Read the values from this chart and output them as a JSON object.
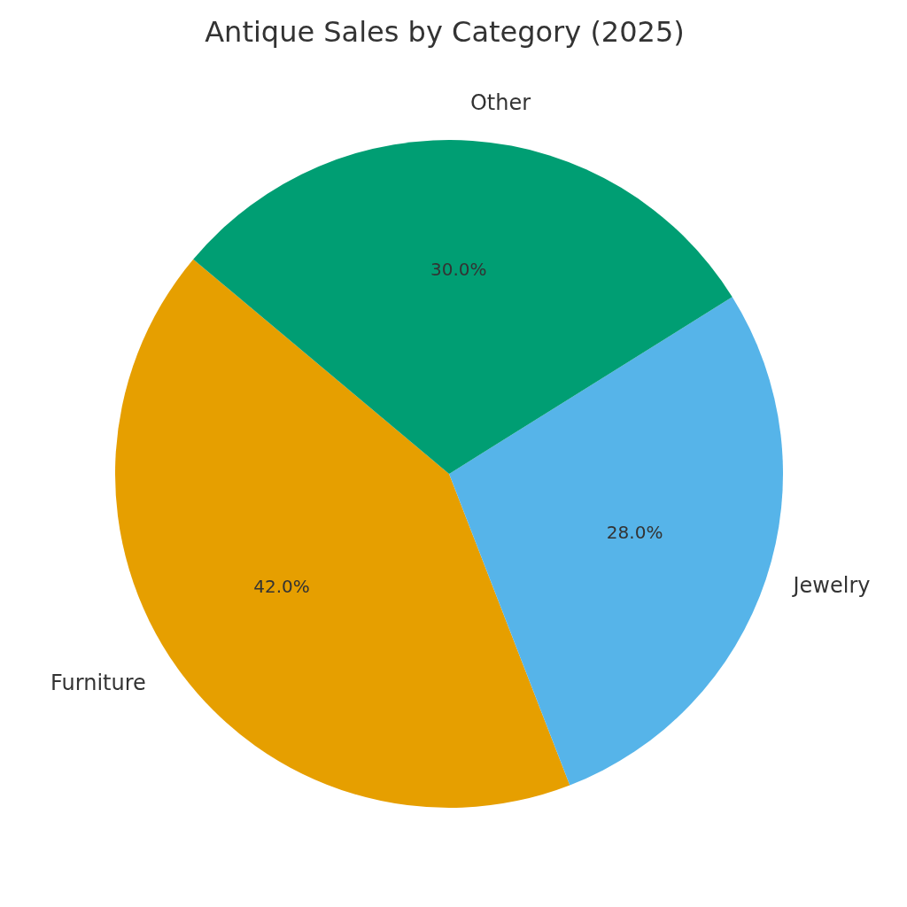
{
  "chart_data": {
    "type": "pie",
    "title": "Antique Sales by Category (2025)",
    "categories": [
      "Furniture",
      "Jewelry",
      "Other"
    ],
    "values": [
      42,
      28,
      30
    ],
    "colors": [
      "#e69f00",
      "#56b4e9",
      "#009e73"
    ],
    "value_labels": [
      "42.0%",
      "28.0%",
      "30.0%"
    ]
  }
}
